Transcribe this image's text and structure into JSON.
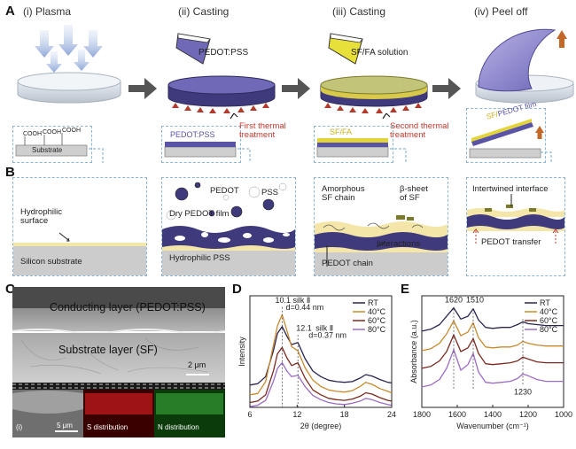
{
  "panelA": {
    "letter": "A",
    "steps": [
      "(i) Plasma",
      "(ii) Casting",
      "(iii) Casting",
      "(iv) Peel off"
    ],
    "pedot_pss_label": "PEDOT:PSS",
    "sf_fa_solution_label": "SF/FA solution",
    "first_thermal": "First thermal\ntreatment",
    "second_thermal": "Second thermal\ntreatment",
    "cooh": [
      "COOH",
      "COOH",
      "COOH"
    ],
    "substrate_label": "Substrate",
    "pedot_pss_layer": "PEDOT:PSS",
    "sf_fa_layer": "SF/FA",
    "film_label_sf": "SF/",
    "film_label_pedot": "PEDOT film"
  },
  "panelB": {
    "letter": "B",
    "hydrophilic_surface": "Hydrophilic\nsurface",
    "silicon_substrate": "Silicon substrate",
    "pedot": "PEDOT",
    "pss": "PSS",
    "dry_pedot_film": "Dry PEDOT film",
    "hydrophilic_pss": "Hydrophilic PSS",
    "amorphous_sf": "Amorphous\nSF chain",
    "beta_sheet": "β-sheet\nof SF",
    "interactions": "Interactions",
    "pedot_chain": "PEDOT chain",
    "intertwined": "Intertwined interface",
    "pedot_transfer": "PEDOT transfer"
  },
  "panelC": {
    "letter": "C",
    "conducting_layer": "Conducting layer (PEDOT:PSS)",
    "substrate_layer": "Substrate layer (SF)",
    "scale_top": "2 μm",
    "scale_bottom": "5 μm",
    "inset_label": "(i)",
    "s_distribution": "S distribution",
    "n_distribution": "N distribution"
  },
  "chart_data": [
    {
      "panel": "D",
      "type": "line",
      "xlabel": "2θ (degree)",
      "ylabel": "Intensity",
      "xlim": [
        6,
        24
      ],
      "xticks": [
        "6",
        "12",
        "18",
        "24"
      ],
      "legend": [
        "RT",
        "40°C",
        "60°C",
        "80°C"
      ],
      "colors": [
        "#2a2450",
        "#c98a2e",
        "#7a2a1e",
        "#9b6cc4"
      ],
      "annotations": [
        "10.1",
        "silk Ⅱ",
        "d=0.44 nm",
        "12.1",
        "silk Ⅱ",
        "d=0.37 nm"
      ],
      "x": [
        6,
        7,
        8,
        9,
        9.5,
        10.1,
        10.7,
        11.3,
        12.1,
        13,
        14,
        15,
        16,
        17,
        18,
        19,
        20,
        20.7,
        21.5,
        22.5,
        23.5,
        24
      ],
      "series": [
        {
          "name": "RT",
          "values": [
            2,
            4,
            14,
            52,
            76,
            86,
            72,
            60,
            63,
            40,
            22,
            14,
            9,
            7,
            6,
            7,
            12,
            17,
            15,
            10,
            6,
            5
          ]
        },
        {
          "name": "40°C",
          "values": [
            3,
            5,
            22,
            75,
            102,
            118,
            95,
            72,
            66,
            42,
            24,
            15,
            10,
            8,
            7,
            9,
            15,
            21,
            18,
            12,
            8,
            6
          ]
        },
        {
          "name": "60°C",
          "values": [
            2,
            4,
            13,
            48,
            72,
            81,
            66,
            55,
            59,
            37,
            20,
            13,
            8,
            6,
            5,
            7,
            11,
            16,
            14,
            9,
            5,
            4
          ]
        },
        {
          "name": "80°C",
          "values": [
            1,
            3,
            10,
            38,
            56,
            64,
            52,
            44,
            46,
            30,
            17,
            11,
            7,
            5,
            4,
            6,
            9,
            13,
            11,
            7,
            4,
            3
          ]
        }
      ]
    },
    {
      "panel": "E",
      "type": "line",
      "xlabel": "Wavenumber (cm⁻¹)",
      "ylabel": "Absorbance (a.u.)",
      "xlim": [
        1800,
        1000
      ],
      "xticks": [
        "1800",
        "1600",
        "1400",
        "1200",
        "1000"
      ],
      "legend": [
        "RT",
        "40°C",
        "60°C",
        "80°C"
      ],
      "colors": [
        "#2a2450",
        "#c98a2e",
        "#7a2a1e",
        "#9b6cc4"
      ],
      "annotations": [
        "1620",
        "1510",
        "1230"
      ],
      "x": [
        1800,
        1750,
        1700,
        1660,
        1620,
        1580,
        1540,
        1510,
        1480,
        1440,
        1400,
        1350,
        1300,
        1260,
        1230,
        1200,
        1150,
        1100,
        1050,
        1000
      ],
      "series": [
        {
          "name": "RT",
          "values": [
            72,
            74,
            79,
            88,
            97,
            85,
            88,
            96,
            84,
            76,
            75,
            76,
            76,
            79,
            82,
            80,
            79,
            78,
            78,
            78
          ]
        },
        {
          "name": "40°C",
          "values": [
            56,
            58,
            64,
            74,
            88,
            72,
            76,
            86,
            70,
            60,
            59,
            60,
            60,
            62,
            66,
            64,
            62,
            61,
            61,
            61
          ]
        },
        {
          "name": "60°C",
          "values": [
            40,
            42,
            48,
            58,
            76,
            58,
            62,
            72,
            56,
            45,
            44,
            45,
            46,
            48,
            52,
            50,
            47,
            46,
            46,
            46
          ]
        },
        {
          "name": "80°C",
          "values": [
            22,
            24,
            30,
            42,
            62,
            40,
            46,
            58,
            38,
            27,
            26,
            27,
            28,
            31,
            36,
            34,
            30,
            28,
            28,
            28
          ]
        }
      ]
    }
  ]
}
